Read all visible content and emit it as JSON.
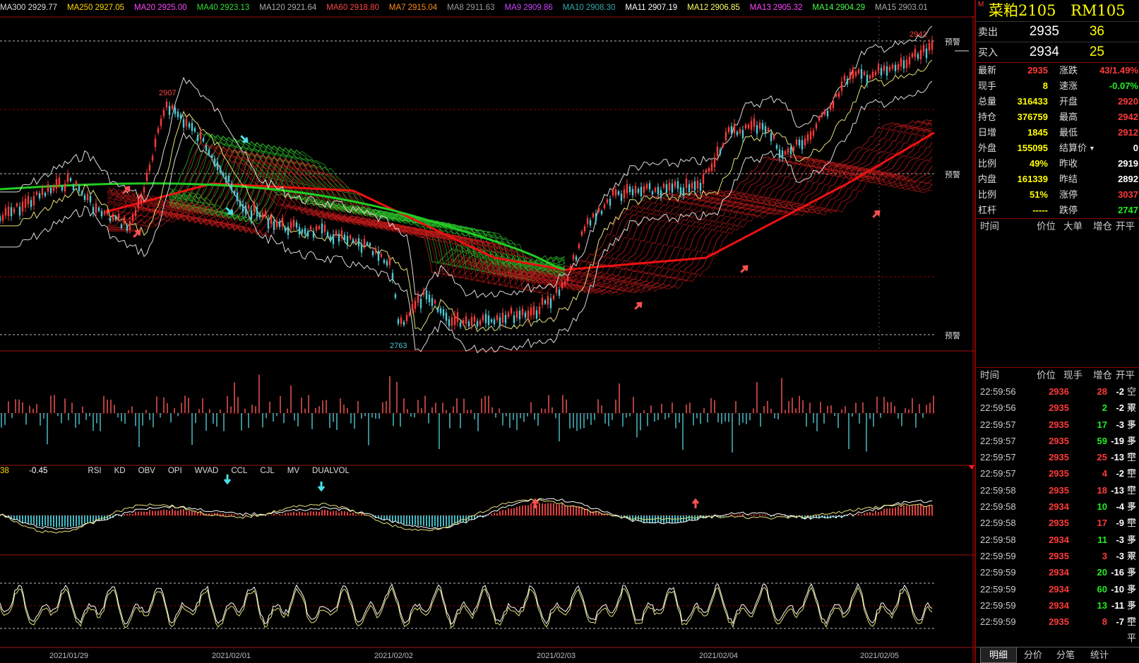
{
  "ma_labels": [
    {
      "name": "MA300",
      "value": "2929.77",
      "color": "#dddddd"
    },
    {
      "name": "MA250",
      "value": "2927.05",
      "color": "#ffd700"
    },
    {
      "name": "MA20",
      "value": "2925.00",
      "color": "#ff44ff"
    },
    {
      "name": "MA40",
      "value": "2923.13",
      "color": "#33dd33"
    },
    {
      "name": "MA120",
      "value": "2921.64",
      "color": "#aaaaaa"
    },
    {
      "name": "MA60",
      "value": "2918.80",
      "color": "#ff4444"
    },
    {
      "name": "MA7",
      "value": "2915.04",
      "color": "#ff8c1a"
    },
    {
      "name": "MA8",
      "value": "2911.63",
      "color": "#999999"
    },
    {
      "name": "MA9",
      "value": "2909.86",
      "color": "#cc44ff"
    },
    {
      "name": "MA10",
      "value": "2908.30",
      "color": "#33aaaa"
    },
    {
      "name": "MA11",
      "value": "2907.19",
      "color": "#ffffff"
    },
    {
      "name": "MA12",
      "value": "2906.85",
      "color": "#ffff66"
    },
    {
      "name": "MA13",
      "value": "2905.32",
      "color": "#ff44ff"
    },
    {
      "name": "MA14",
      "value": "2904.29",
      "color": "#44ff44"
    },
    {
      "name": "MA15",
      "value": "2903.01",
      "color": "#aaaaaa"
    }
  ],
  "chart": {
    "price_high_label": "2942",
    "price_peak_label": "2907",
    "price_low_label": "2763",
    "alert_label": "预警",
    "macd_values": [
      "38",
      "-0.45"
    ],
    "indicator_tabs": [
      "RSI",
      "KD",
      "OBV",
      "OPI",
      "WVAD",
      "CCL",
      "CJL",
      "MV",
      "DUALVOL"
    ],
    "dates": [
      "2021/01/29",
      "2021/02/01",
      "2021/02/02",
      "2021/02/03",
      "2021/02/04",
      "2021/02/05"
    ]
  },
  "quote": {
    "marker": "M",
    "name": "菜粕2105",
    "code": "RM105",
    "ask_label": "卖出",
    "ask_price": "2935",
    "ask_vol": "36",
    "bid_label": "买入",
    "bid_price": "2934",
    "bid_vol": "25",
    "rows": [
      {
        "l": "最新",
        "v": "2935",
        "lc": "#ff3a3a",
        "r": "涨跌",
        "rv": "43/1.49%",
        "rc": "#ff3a3a"
      },
      {
        "l": "现手",
        "v": "8",
        "lc": "#ffff00",
        "r": "速涨",
        "rv": "-0.07%",
        "rc": "#22ee22"
      },
      {
        "l": "总量",
        "v": "316433",
        "lc": "#ffff00",
        "r": "开盘",
        "rv": "2920",
        "rc": "#ff3a3a"
      },
      {
        "l": "持仓",
        "v": "376759",
        "lc": "#ffff00",
        "r": "最高",
        "rv": "2942",
        "rc": "#ff3a3a"
      },
      {
        "l": "日增",
        "v": "1845",
        "lc": "#ffff00",
        "r": "最低",
        "rv": "2912",
        "rc": "#ff3a3a"
      },
      {
        "l": "外盘",
        "v": "155095",
        "lc": "#ffff00",
        "r": "结算价",
        "rv": "0",
        "rc": "#ffffff"
      },
      {
        "l": "比例",
        "v": "49%",
        "lc": "#ffff00",
        "r": "昨收",
        "rv": "2919",
        "rc": "#ffffff"
      },
      {
        "l": "内盘",
        "v": "161339",
        "lc": "#ffff00",
        "r": "昨结",
        "rv": "2892",
        "rc": "#ffffff"
      },
      {
        "l": "比例",
        "v": "51%",
        "lc": "#ffff00",
        "r": "涨停",
        "rv": "3037",
        "rc": "#ff3a3a"
      },
      {
        "l": "杠杆",
        "v": "-----",
        "lc": "#ffff00",
        "r": "跌停",
        "rv": "2747",
        "rc": "#22ee22"
      }
    ],
    "big_header": [
      "时间",
      "价位",
      "大单",
      "增仓",
      "开平"
    ],
    "tick_header": [
      "时间",
      "价位",
      "现手",
      "增仓",
      "开平"
    ],
    "ticks": [
      {
        "t": "22:59:56",
        "p": "2936",
        "v": "28",
        "vc": "#ff3a3a",
        "z": "-2",
        "k": "空平"
      },
      {
        "t": "22:59:56",
        "p": "2935",
        "v": "2",
        "vc": "#22ee22",
        "z": "-2",
        "k": "双平"
      },
      {
        "t": "22:59:57",
        "p": "2935",
        "v": "17",
        "vc": "#22ee22",
        "z": "-3",
        "k": "多平"
      },
      {
        "t": "22:59:57",
        "p": "2935",
        "v": "59",
        "vc": "#22ee22",
        "z": "-19",
        "k": "多平"
      },
      {
        "t": "22:59:57",
        "p": "2935",
        "v": "25",
        "vc": "#ff3a3a",
        "z": "-13",
        "k": "空平"
      },
      {
        "t": "22:59:57",
        "p": "2935",
        "v": "4",
        "vc": "#ff3a3a",
        "z": "-2",
        "k": "空平"
      },
      {
        "t": "22:59:58",
        "p": "2935",
        "v": "18",
        "vc": "#ff3a3a",
        "z": "-13",
        "k": "空平"
      },
      {
        "t": "22:59:58",
        "p": "2934",
        "v": "10",
        "vc": "#22ee22",
        "z": "-4",
        "k": "多平"
      },
      {
        "t": "22:59:58",
        "p": "2935",
        "v": "17",
        "vc": "#ff3a3a",
        "z": "-9",
        "k": "空平"
      },
      {
        "t": "22:59:58",
        "p": "2934",
        "v": "11",
        "vc": "#22ee22",
        "z": "-3",
        "k": "多平"
      },
      {
        "t": "22:59:59",
        "p": "2935",
        "v": "3",
        "vc": "#ff3a3a",
        "z": "-3",
        "k": "双平"
      },
      {
        "t": "22:59:59",
        "p": "2934",
        "v": "20",
        "vc": "#22ee22",
        "z": "-16",
        "k": "多平"
      },
      {
        "t": "22:59:59",
        "p": "2934",
        "v": "60",
        "vc": "#22ee22",
        "z": "-10",
        "k": "多平"
      },
      {
        "t": "22:59:59",
        "p": "2934",
        "v": "13",
        "vc": "#22ee22",
        "z": "-11",
        "k": "多平"
      },
      {
        "t": "22:59:59",
        "p": "2935",
        "v": "8",
        "vc": "#ff3a3a",
        "z": "-7",
        "k": "空平"
      }
    ],
    "tabs": [
      "明细",
      "分价",
      "分笔",
      "统计"
    ]
  }
}
